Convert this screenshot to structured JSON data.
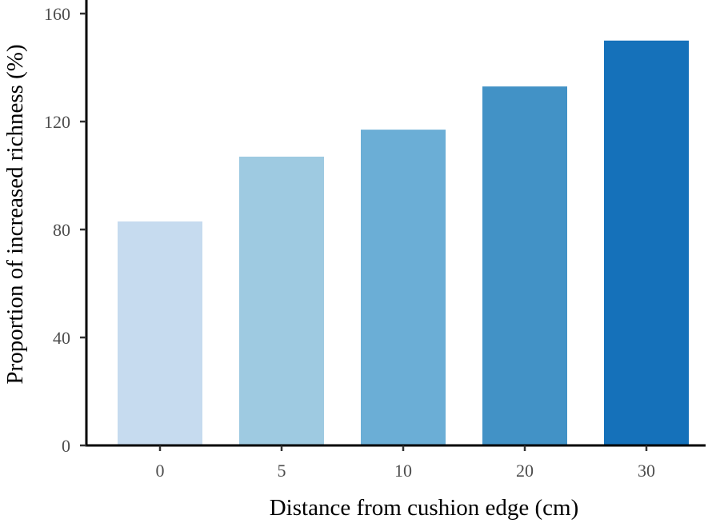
{
  "chart_data": {
    "type": "bar",
    "title": "",
    "xlabel": "Distance from cushion edge (cm)",
    "ylabel": "Proportion of increased richness (%)",
    "categories": [
      "0",
      "5",
      "10",
      "20",
      "30"
    ],
    "values": [
      83,
      107,
      117,
      133,
      150
    ],
    "colors": [
      "#c6dbef",
      "#9ecae1",
      "#6baed6",
      "#4292c6",
      "#1571ba"
    ],
    "ylim": [
      0,
      165
    ],
    "yticks": [
      0,
      40,
      80,
      120,
      160
    ],
    "grid": false,
    "legend": "none"
  }
}
